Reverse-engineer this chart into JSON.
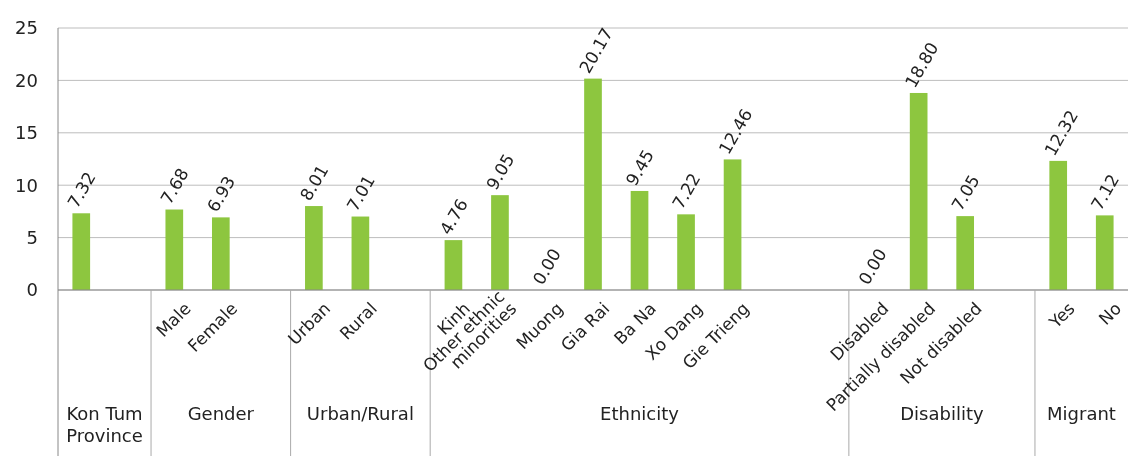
{
  "chart_data": {
    "type": "bar",
    "categories": [
      null,
      null,
      "Male",
      "Female",
      null,
      "Urban",
      "Rural",
      null,
      "Kinh",
      "Other ethnic\nminorities",
      "Muong",
      "Gia Rai",
      "Ba Na",
      "Xo Dang",
      "Gie Trieng",
      null,
      null,
      "Disabled",
      "Partially disabled",
      "Not disabled",
      null,
      "Yes",
      "No"
    ],
    "values": [
      7.32,
      null,
      7.68,
      6.93,
      null,
      8.01,
      7.01,
      null,
      4.76,
      9.05,
      0.0,
      20.17,
      9.45,
      7.22,
      12.46,
      null,
      null,
      0.0,
      18.8,
      7.05,
      null,
      12.32,
      7.12
    ],
    "color": "#8dc63f",
    "value_labels": [
      "7.32",
      null,
      "7.68",
      "6.93",
      null,
      "8.01",
      "7.01",
      null,
      "4.76",
      "9.05",
      "0.00",
      "20.17",
      "9.45",
      "7.22",
      "12.46",
      null,
      null,
      "0.00",
      "18.80",
      "7.05",
      null,
      "12.32",
      "7.12"
    ],
    "ylim": [
      0,
      25
    ],
    "yticks": [
      0,
      5,
      10,
      15,
      20,
      25
    ],
    "grid": "y",
    "annotations": [
      "Kon Tum\nProvince",
      "Gender",
      "Urban/Rural",
      "Ethnicity",
      "Disability",
      "Migrant"
    ]
  }
}
